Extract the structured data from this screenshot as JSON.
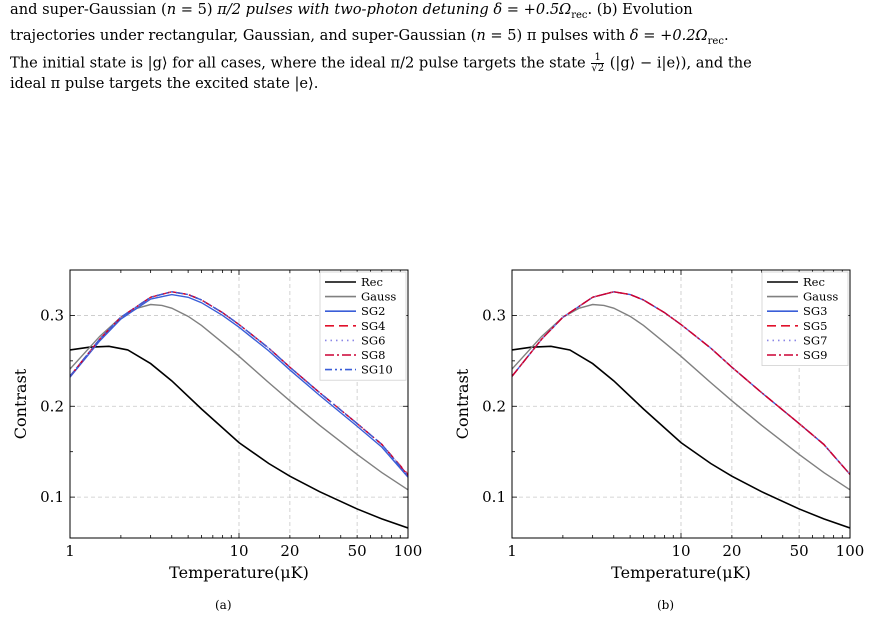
{
  "caption": {
    "line1_a": "and super-Gaussian (",
    "line1_n": "n",
    "line1_b": " = 5) ",
    "line1_c": "π/2 pulses with two-photon detuning ",
    "line1_delta": "δ = +0.5Ω",
    "line1_sub": "rec",
    "line1_d": ".  (b) Evolution",
    "line2_a": "trajectories under rectangular, Gaussian, and super-Gaussian (",
    "line2_n": "n",
    "line2_b": " = 5) π pulses with ",
    "line2_delta": "δ = +0.2Ω",
    "line2_sub": "rec",
    "line2_c": ".",
    "line3_a": "The initial state is |g⟩ for all cases, where the ideal π/2 pulse targets the state ",
    "line3_frac_num": "1",
    "line3_frac_den": "√2",
    "line3_b": " (|g⟩ − i|e⟩), and the",
    "line4": "ideal π pulse targets the excited state |e⟩."
  },
  "panels": [
    {
      "sublabel": "(a)",
      "ylabel": "Contrast",
      "xlabel": "Temperature(μK)",
      "yticks": [
        "0.1",
        "0.2",
        "0.3"
      ],
      "xticks": [
        "1",
        "10",
        "20",
        "50",
        "100"
      ],
      "legend": [
        "Rec",
        "Gauss",
        "SG2",
        "SG4",
        "SG6",
        "SG8",
        "SG10"
      ]
    },
    {
      "sublabel": "(b)",
      "ylabel": "Contrast",
      "xlabel": "Temperature(μK)",
      "yticks": [
        "0.1",
        "0.2",
        "0.3"
      ],
      "xticks": [
        "1",
        "10",
        "20",
        "50",
        "100"
      ],
      "legend": [
        "Rec",
        "Gauss",
        "SG3",
        "SG5",
        "SG7",
        "SG9"
      ]
    }
  ],
  "chart_data": [
    {
      "type": "line",
      "xscale": "log",
      "xlim": [
        1,
        100
      ],
      "ylim": [
        0.055,
        0.35
      ],
      "grid": true,
      "legend_position": "top-right",
      "series": [
        {
          "name": "Rec",
          "color": "#000000",
          "style": "solid",
          "x": [
            1,
            1.3,
            1.7,
            2.2,
            3,
            4,
            6,
            10,
            15,
            20,
            30,
            50,
            70,
            100
          ],
          "y": [
            0.262,
            0.265,
            0.266,
            0.262,
            0.247,
            0.228,
            0.197,
            0.16,
            0.137,
            0.123,
            0.106,
            0.087,
            0.076,
            0.066
          ]
        },
        {
          "name": "Gauss",
          "color": "#808080",
          "style": "solid",
          "x": [
            1,
            1.5,
            2,
            2.5,
            3,
            3.5,
            4,
            5,
            6,
            8,
            10,
            15,
            20,
            30,
            50,
            70,
            100
          ],
          "y": [
            0.241,
            0.277,
            0.298,
            0.308,
            0.312,
            0.311,
            0.308,
            0.299,
            0.289,
            0.27,
            0.255,
            0.226,
            0.206,
            0.179,
            0.147,
            0.127,
            0.108
          ]
        },
        {
          "name": "SG2",
          "color": "#3a5ed8",
          "style": "solid",
          "x": [
            1,
            1.5,
            2,
            3,
            4,
            5,
            6,
            8,
            10,
            15,
            20,
            30,
            50,
            70,
            100
          ],
          "y": [
            0.232,
            0.272,
            0.296,
            0.318,
            0.323,
            0.32,
            0.314,
            0.3,
            0.287,
            0.261,
            0.24,
            0.212,
            0.178,
            0.155,
            0.122
          ]
        },
        {
          "name": "SG4",
          "color": "#e0112b",
          "style": "dash",
          "x": [
            1,
            1.5,
            2,
            3,
            4,
            5,
            6,
            8,
            10,
            15,
            20,
            30,
            50,
            70,
            100
          ],
          "y": [
            0.233,
            0.274,
            0.298,
            0.32,
            0.326,
            0.323,
            0.317,
            0.303,
            0.29,
            0.264,
            0.243,
            0.215,
            0.181,
            0.158,
            0.125
          ]
        },
        {
          "name": "SG6",
          "color": "#8a86e6",
          "style": "dot",
          "x": [
            1,
            1.5,
            2,
            3,
            4,
            5,
            6,
            8,
            10,
            15,
            20,
            30,
            50,
            70,
            100
          ],
          "y": [
            0.233,
            0.274,
            0.298,
            0.32,
            0.326,
            0.323,
            0.317,
            0.303,
            0.29,
            0.264,
            0.243,
            0.215,
            0.181,
            0.158,
            0.124
          ]
        },
        {
          "name": "SG8",
          "color": "#cc0033",
          "style": "dashdot",
          "x": [
            1,
            1.5,
            2,
            3,
            4,
            5,
            6,
            8,
            10,
            15,
            20,
            30,
            50,
            70,
            100
          ],
          "y": [
            0.233,
            0.274,
            0.298,
            0.32,
            0.326,
            0.323,
            0.317,
            0.303,
            0.29,
            0.264,
            0.243,
            0.215,
            0.181,
            0.158,
            0.124
          ]
        },
        {
          "name": "SG10",
          "color": "#3a5ed8",
          "style": "dashdotdot",
          "x": [
            1,
            1.5,
            2,
            3,
            4,
            5,
            6,
            8,
            10,
            15,
            20,
            30,
            50,
            70,
            100
          ],
          "y": [
            0.233,
            0.274,
            0.298,
            0.32,
            0.326,
            0.323,
            0.317,
            0.303,
            0.29,
            0.264,
            0.243,
            0.215,
            0.181,
            0.158,
            0.123
          ]
        }
      ]
    },
    {
      "type": "line",
      "xscale": "log",
      "xlim": [
        1,
        100
      ],
      "ylim": [
        0.055,
        0.35
      ],
      "grid": true,
      "legend_position": "top-right",
      "series": [
        {
          "name": "Rec",
          "color": "#000000",
          "style": "solid",
          "x": [
            1,
            1.3,
            1.7,
            2.2,
            3,
            4,
            6,
            10,
            15,
            20,
            30,
            50,
            70,
            100
          ],
          "y": [
            0.262,
            0.265,
            0.266,
            0.262,
            0.247,
            0.228,
            0.197,
            0.16,
            0.137,
            0.123,
            0.106,
            0.087,
            0.076,
            0.066
          ]
        },
        {
          "name": "Gauss",
          "color": "#808080",
          "style": "solid",
          "x": [
            1,
            1.5,
            2,
            2.5,
            3,
            3.5,
            4,
            5,
            6,
            8,
            10,
            15,
            20,
            30,
            50,
            70,
            100
          ],
          "y": [
            0.241,
            0.277,
            0.298,
            0.308,
            0.312,
            0.311,
            0.308,
            0.299,
            0.289,
            0.27,
            0.255,
            0.226,
            0.206,
            0.179,
            0.147,
            0.127,
            0.108
          ]
        },
        {
          "name": "SG3",
          "color": "#3a5ed8",
          "style": "solid",
          "x": [
            1,
            1.5,
            2,
            3,
            4,
            5,
            6,
            8,
            10,
            15,
            20,
            30,
            50,
            70,
            100
          ],
          "y": [
            0.233,
            0.274,
            0.298,
            0.32,
            0.326,
            0.323,
            0.317,
            0.303,
            0.29,
            0.264,
            0.243,
            0.215,
            0.181,
            0.158,
            0.125
          ]
        },
        {
          "name": "SG5",
          "color": "#e0112b",
          "style": "dash",
          "x": [
            1,
            1.5,
            2,
            3,
            4,
            5,
            6,
            8,
            10,
            15,
            20,
            30,
            50,
            70,
            100
          ],
          "y": [
            0.233,
            0.274,
            0.298,
            0.32,
            0.326,
            0.323,
            0.317,
            0.303,
            0.29,
            0.264,
            0.243,
            0.215,
            0.181,
            0.158,
            0.125
          ]
        },
        {
          "name": "SG7",
          "color": "#8a86e6",
          "style": "dot",
          "x": [
            1,
            1.5,
            2,
            3,
            4,
            5,
            6,
            8,
            10,
            15,
            20,
            30,
            50,
            70,
            100
          ],
          "y": [
            0.233,
            0.274,
            0.298,
            0.32,
            0.326,
            0.323,
            0.317,
            0.303,
            0.29,
            0.264,
            0.243,
            0.215,
            0.181,
            0.158,
            0.125
          ]
        },
        {
          "name": "SG9",
          "color": "#cc0033",
          "style": "dashdot",
          "x": [
            1,
            1.5,
            2,
            3,
            4,
            5,
            6,
            8,
            10,
            15,
            20,
            30,
            50,
            70,
            100
          ],
          "y": [
            0.233,
            0.274,
            0.298,
            0.32,
            0.326,
            0.323,
            0.317,
            0.303,
            0.29,
            0.264,
            0.243,
            0.215,
            0.181,
            0.158,
            0.125
          ]
        }
      ]
    }
  ]
}
